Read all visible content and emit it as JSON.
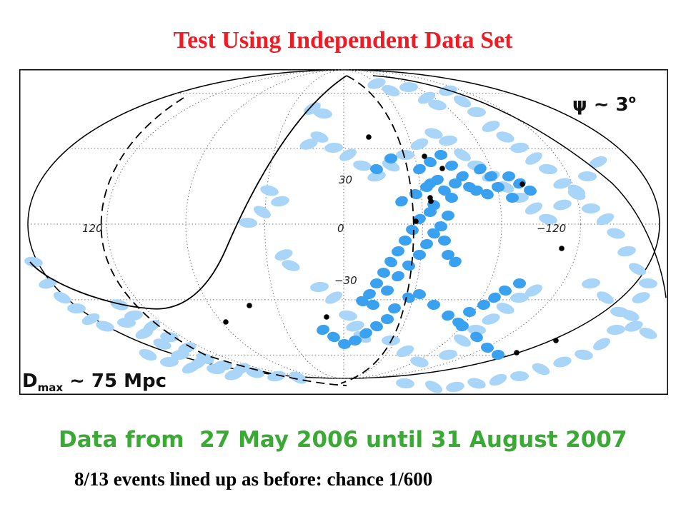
{
  "title": "Test Using Independent Data Set",
  "map": {
    "projection": "Aitoff / Hammer-Aitoff galactic sky map",
    "psi_label": "ψ ~ 3",
    "psi_superscript": "o",
    "dmax_label_main": "D",
    "dmax_label_sub": "max",
    "dmax_label_value": " ~ 75 Mpc",
    "lon_ticks": [
      "120",
      "0",
      "−120"
    ],
    "lat_ticks": [
      "30",
      "−30"
    ],
    "colors": {
      "frame": "#000000",
      "grid": "#777777",
      "light_blue": "#a9d6f8",
      "mid_blue": "#3aa1f0",
      "event": "#000000"
    }
  },
  "date_line": "Data from  27 May 2006 until 31 August 2007",
  "events_line": "8/13 events lined up as before: chance 1/600"
}
